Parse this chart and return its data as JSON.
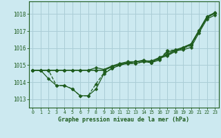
{
  "title": "Graphe pression niveau de la mer (hPa)",
  "hours": [
    0,
    1,
    2,
    3,
    4,
    5,
    6,
    7,
    8,
    9,
    10,
    11,
    12,
    13,
    14,
    15,
    16,
    17,
    18,
    19,
    20,
    21,
    22,
    23
  ],
  "ylim": [
    1012.5,
    1018.75
  ],
  "yticks": [
    1013,
    1014,
    1015,
    1016,
    1017,
    1018
  ],
  "background_color": "#cce9f0",
  "grid_color": "#aacdd6",
  "line_color": "#1e5c1e",
  "lines": [
    [
      1014.7,
      1014.7,
      1014.2,
      1013.8,
      1013.8,
      1013.6,
      1013.2,
      1013.2,
      1013.6,
      1014.5,
      1014.8,
      1015.0,
      1015.1,
      1015.1,
      1015.2,
      1015.15,
      1015.3,
      1015.8,
      1015.85,
      1015.9,
      1016.05,
      1016.9,
      1017.7,
      1017.95
    ],
    [
      1014.7,
      1014.7,
      1014.7,
      1014.7,
      1014.7,
      1014.7,
      1014.7,
      1014.7,
      1014.7,
      1014.7,
      1014.9,
      1015.05,
      1015.15,
      1015.2,
      1015.25,
      1015.2,
      1015.4,
      1015.55,
      1015.8,
      1016.0,
      1016.2,
      1017.0,
      1017.8,
      1018.05
    ],
    [
      1014.7,
      1014.7,
      1014.7,
      1014.7,
      1014.7,
      1014.7,
      1014.7,
      1014.7,
      1014.7,
      1014.7,
      1014.9,
      1015.05,
      1015.15,
      1015.2,
      1015.25,
      1015.25,
      1015.45,
      1015.6,
      1015.85,
      1016.05,
      1016.25,
      1017.05,
      1017.85,
      1018.1
    ],
    [
      1014.7,
      1014.7,
      1014.7,
      1014.7,
      1014.7,
      1014.7,
      1014.7,
      1014.7,
      1014.85,
      1014.75,
      1014.95,
      1015.1,
      1015.2,
      1015.2,
      1015.3,
      1015.15,
      1015.45,
      1015.65,
      1015.9,
      1016.05,
      1016.25,
      1017.05,
      1017.85,
      1018.05
    ]
  ],
  "line_dip": [
    1014.7,
    1014.7,
    1014.7,
    1013.8,
    1013.8,
    1013.6,
    1013.2,
    1013.2,
    1013.9,
    1014.55,
    1014.8,
    1015.0,
    1015.1,
    1015.1,
    1015.2,
    1015.15,
    1015.35,
    1015.85,
    1015.9,
    1016.0,
    1016.15,
    1017.0,
    1017.8,
    1018.05
  ],
  "marker_size": 2.5,
  "line_width": 0.9
}
